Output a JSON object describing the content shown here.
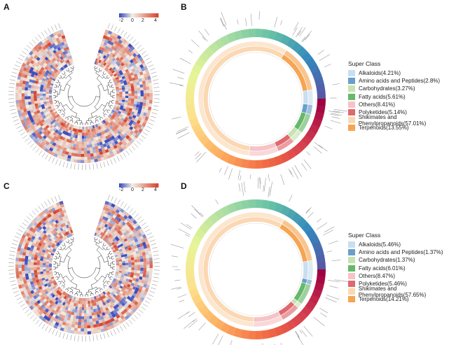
{
  "panels": [
    {
      "letter": "A",
      "kind": "heatmap"
    },
    {
      "letter": "B",
      "kind": "donut"
    },
    {
      "letter": "C",
      "kind": "heatmap"
    },
    {
      "letter": "D",
      "kind": "donut"
    }
  ],
  "colorbar": {
    "ticks": [
      "-2",
      "0",
      "2",
      "4"
    ],
    "colors": [
      "#3b4cc0",
      "#f2f0e4",
      "#d6452f"
    ]
  },
  "legend_title": "Super Class",
  "chart_data": [
    {
      "type": "heatmap",
      "panel": "A",
      "layout": "circular",
      "scale": {
        "min": -2,
        "max": 4,
        "ticks": [
          -2,
          0,
          2,
          4
        ]
      },
      "dendrogram": true
    },
    {
      "type": "pie",
      "panel": "B",
      "legend_title": "Super Class",
      "categories": [
        "Alkaloids(4.21%)",
        "Amino acids and Peptides(2.8%)",
        "Carbohydrates(3.27%)",
        "Fatty acids(5.61%)",
        "Others(8.41%)",
        "Polyketides(5.14%)",
        "Shikimates and Phenylpropanoids(57.01%)",
        "Terpenoids(13.55%)"
      ],
      "values": [
        4.21,
        2.8,
        3.27,
        5.61,
        8.41,
        5.14,
        57.01,
        13.55
      ],
      "colors": [
        "#c9dff0",
        "#6a9ecb",
        "#c6e3b0",
        "#66b86a",
        "#f6c3c6",
        "#e0686f",
        "#fbd8b3",
        "#f6a552"
      ]
    },
    {
      "type": "heatmap",
      "panel": "C",
      "layout": "circular",
      "scale": {
        "min": -2,
        "max": 4,
        "ticks": [
          -2,
          0,
          2,
          4
        ]
      },
      "dendrogram": true
    },
    {
      "type": "pie",
      "panel": "D",
      "legend_title": "Super Class",
      "categories": [
        "Alkaloids(5.46%)",
        "Amino acids and Peptides(1.37%)",
        "Carbohydrates(1.37%)",
        "Fatty acids(6.01%)",
        "Others(8.47%)",
        "Polyketides(5.46%)",
        "Shikimates and Phenylpropanoids(57.65%)",
        "Terpenoids(14.21%)"
      ],
      "values": [
        5.46,
        1.37,
        1.37,
        6.01,
        8.47,
        5.46,
        57.65,
        14.21
      ],
      "colors": [
        "#c9dff0",
        "#6a9ecb",
        "#c6e3b0",
        "#66b86a",
        "#f6c3c6",
        "#e0686f",
        "#fbd8b3",
        "#f6a552"
      ]
    }
  ]
}
